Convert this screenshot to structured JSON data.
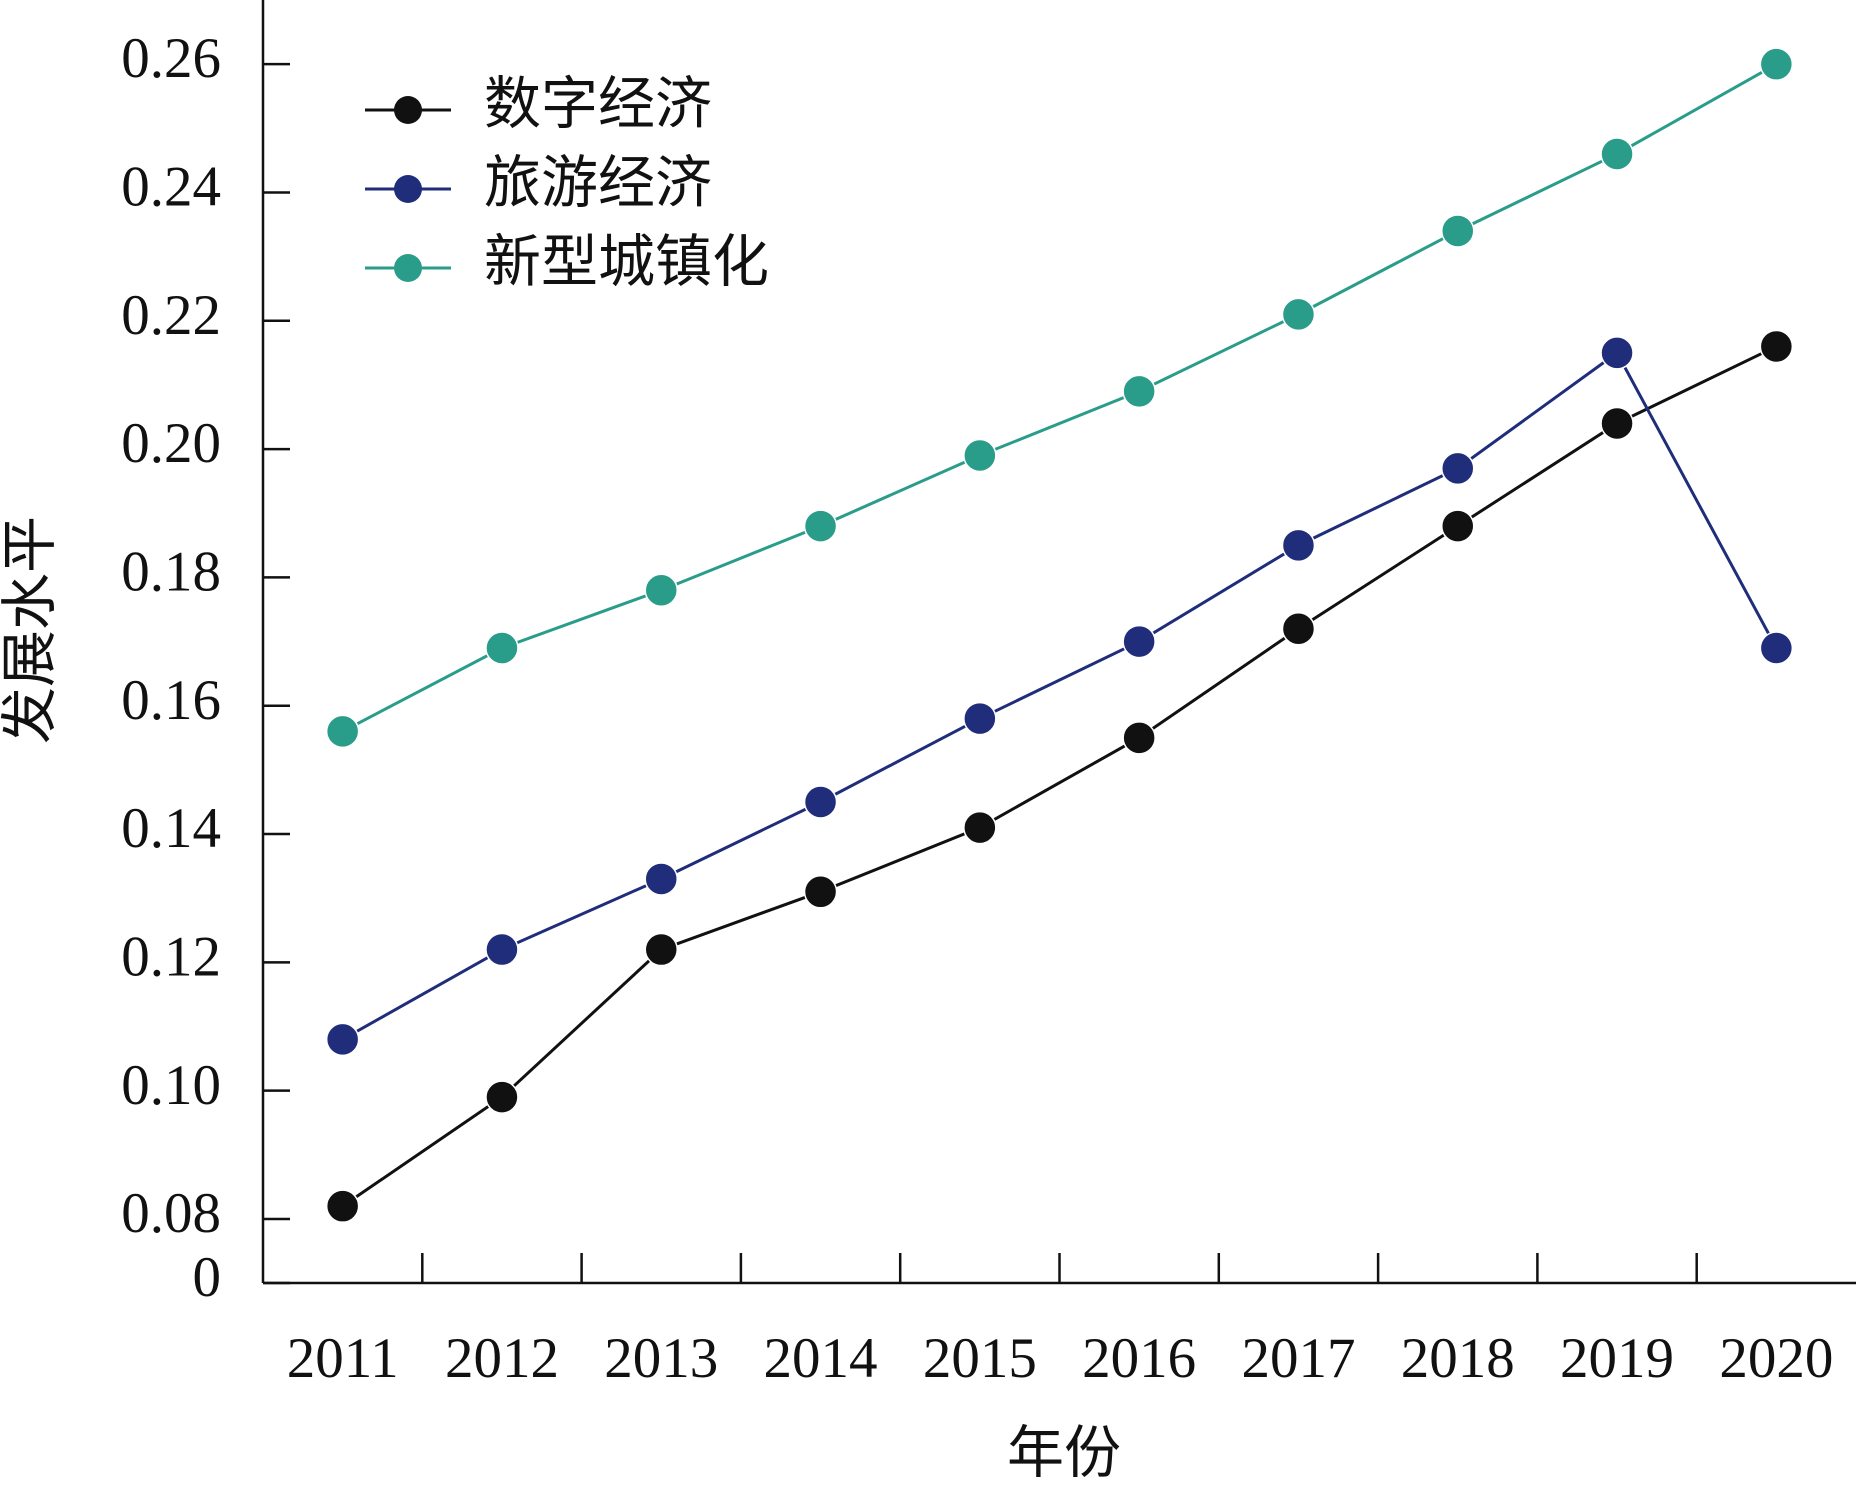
{
  "chart_data": {
    "type": "line",
    "xlabel": "年份",
    "ylabel": "发展水平",
    "categories": [
      "2011",
      "2012",
      "2013",
      "2014",
      "2015",
      "2016",
      "2017",
      "2018",
      "2019",
      "2020"
    ],
    "series": [
      {
        "name": "数字经济",
        "color": "#111111",
        "values": [
          0.082,
          0.099,
          0.122,
          0.131,
          0.141,
          0.155,
          0.172,
          0.188,
          0.204,
          0.216
        ]
      },
      {
        "name": "旅游经济",
        "color": "#1f2d7a",
        "values": [
          0.108,
          0.122,
          0.133,
          0.145,
          0.158,
          0.17,
          0.185,
          0.197,
          0.215,
          0.169
        ]
      },
      {
        "name": "新型城镇化",
        "color": "#2a9d8a",
        "values": [
          0.156,
          0.169,
          0.178,
          0.188,
          0.199,
          0.209,
          0.221,
          0.234,
          0.246,
          0.26
        ]
      }
    ],
    "ylim": [
      0,
      0.27
    ],
    "yticks": [
      0,
      0.08,
      {
        "value": 0.1,
        "label": "0.10"
      },
      0.12,
      0.14,
      0.16,
      0.18,
      {
        "value": 0.2,
        "label": "0.20"
      },
      0.22,
      0.24,
      0.26
    ],
    "legend": "upper left"
  }
}
